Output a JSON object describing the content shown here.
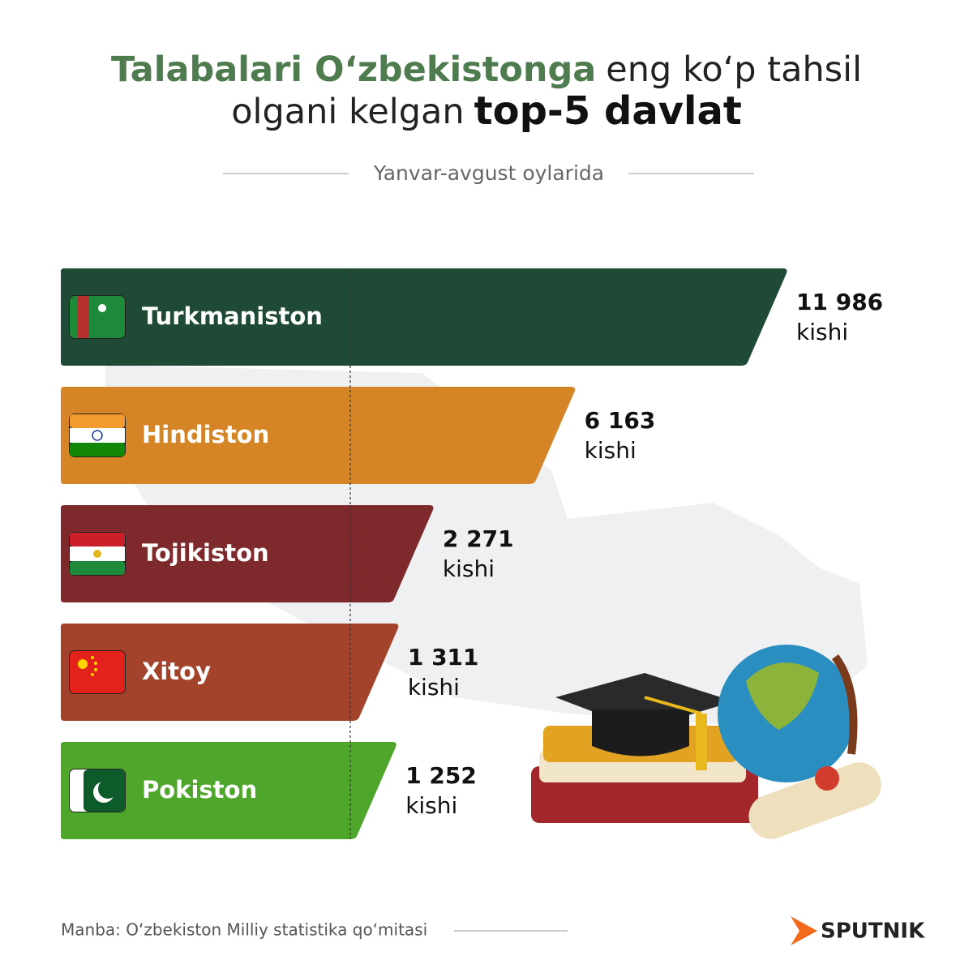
{
  "chart_data": {
    "type": "bar",
    "title_lines": [
      [
        "Talabalari O‘zbekistonga",
        "eng ko‘p tahsil"
      ],
      [
        "olgani kelgan",
        "top-5 davlat"
      ]
    ],
    "subtitle": "Yanvar-avgust oylarida",
    "categories": [
      "Turkmaniston",
      "Hindiston",
      "Tojikiston",
      "Xitoy",
      "Pokiston"
    ],
    "values": [
      11986,
      6163,
      2271,
      1311,
      1252
    ],
    "value_labels": [
      "11 986",
      "6 163",
      "2 271",
      "1 311",
      "1 252"
    ],
    "unit": "kishi",
    "colors": [
      "#1f4a36",
      "#d58526",
      "#7e2a2c",
      "#a3432b",
      "#4ea62b"
    ],
    "source": "Manba: O‘zbekiston Milliy statistika qo‘mitasi",
    "brand": "SPUTNIK"
  }
}
